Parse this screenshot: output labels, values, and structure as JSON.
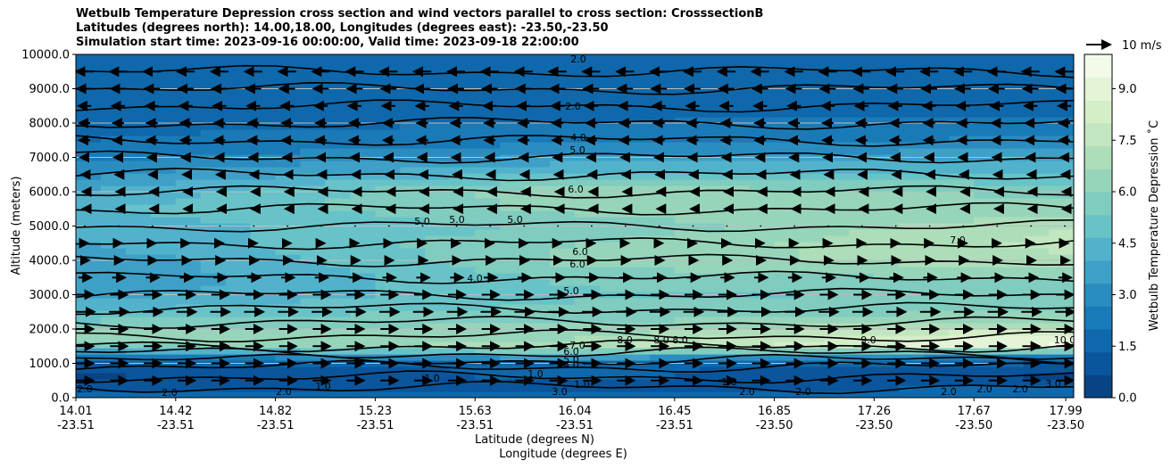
{
  "title_lines": [
    "Wetbulb Temperature Depression cross section and wind vectors parallel to cross section: CrosssectionB",
    "Latitudes (degrees north): 14.00,18.00, Longitudes (degrees east): -23.50,-23.50",
    "Simulation start time: 2023-09-16 00:00:00, Valid time: 2023-09-18 22:00:00"
  ],
  "chart_data": {
    "type": "heatmap",
    "ylabel": "Altitude (meters)",
    "xlabel_line1": "Latitude (degrees N)",
    "xlabel_line2": "Longitude (degrees E)",
    "ylim": [
      0,
      10000
    ],
    "y_ticks": [
      "0.0",
      "1000.0",
      "2000.0",
      "3000.0",
      "4000.0",
      "5000.0",
      "6000.0",
      "7000.0",
      "8000.0",
      "9000.0",
      "10000.0"
    ],
    "x_ticks": [
      {
        "lat": "14.01",
        "lon": "-23.51"
      },
      {
        "lat": "14.42",
        "lon": "-23.51"
      },
      {
        "lat": "14.82",
        "lon": "-23.51"
      },
      {
        "lat": "15.23",
        "lon": "-23.51"
      },
      {
        "lat": "15.63",
        "lon": "-23.51"
      },
      {
        "lat": "16.04",
        "lon": "-23.51"
      },
      {
        "lat": "16.45",
        "lon": "-23.51"
      },
      {
        "lat": "16.85",
        "lon": "-23.50"
      },
      {
        "lat": "17.26",
        "lon": "-23.50"
      },
      {
        "lat": "17.67",
        "lon": "-23.50"
      },
      {
        "lat": "17.99",
        "lon": "-23.50"
      }
    ],
    "colorbar": {
      "label": "Wetbulb Temperature Depression ˚C",
      "min": 0,
      "max": 10,
      "ticks": [
        "0.0",
        "1.5",
        "3.0",
        "4.5",
        "6.0",
        "7.5",
        "9.0"
      ],
      "colors": [
        "#084384",
        "#0a559c",
        "#0f68ab",
        "#1a7ab7",
        "#2b8cbf",
        "#3ea0c6",
        "#52b2cc",
        "#68c3c8",
        "#80ccbf",
        "#97d5bb",
        "#addeb9",
        "#c2e6bf",
        "#d4eec8",
        "#e4f4d6",
        "#f2fae9"
      ]
    },
    "profile": {
      "heights": [
        0,
        300,
        600,
        900,
        1100,
        1300,
        1500,
        1800,
        2200,
        2600,
        3000,
        3500,
        4000,
        4500,
        5000,
        5500,
        6000,
        6500,
        7000,
        7500,
        8000,
        8500,
        9000,
        9500,
        10000
      ],
      "left": [
        1.5,
        1.0,
        0.5,
        1.0,
        1.5,
        3.0,
        5.5,
        6.2,
        5.5,
        4.5,
        3.8,
        3.3,
        3.4,
        4.0,
        4.2,
        4.5,
        4.0,
        3.2,
        2.5,
        2.0,
        1.8,
        1.6,
        1.5,
        1.5,
        1.5
      ],
      "mid": [
        1.5,
        1.0,
        1.5,
        1.5,
        2.5,
        5.0,
        7.2,
        6.5,
        6.0,
        5.5,
        5.2,
        5.5,
        6.2,
        6.0,
        5.5,
        6.2,
        6.5,
        5.0,
        3.5,
        2.5,
        2.0,
        1.8,
        1.5,
        1.5,
        1.5
      ],
      "right": [
        1.5,
        1.5,
        0.5,
        1.0,
        1.5,
        3.5,
        9.5,
        9.3,
        6.5,
        6.0,
        5.5,
        6.2,
        7.2,
        7.6,
        7.3,
        6.2,
        5.8,
        4.8,
        3.8,
        2.8,
        2.2,
        1.8,
        1.5,
        1.5,
        1.5
      ]
    },
    "contour_labels": [
      "2.0",
      "2.0",
      "4.0",
      "5.0",
      "6.0",
      "5.0",
      "5.0",
      "5.0",
      "6.0",
      "6.0",
      "4.0",
      "5.0",
      "7.0",
      "7.0",
      "8.0",
      "8.0",
      "8.0",
      "9.0",
      "10.0",
      "6.0",
      "5.0",
      "4.0",
      "3.0",
      "1.0",
      "1.0",
      "1.0",
      "1.0",
      "2.0",
      "2.0",
      "2.0",
      "2.0",
      "2.0",
      "2.0",
      "2.0",
      "2.0",
      "3.0",
      "1.0"
    ],
    "wind_reference_label": "10 m/s",
    "wind_profile": {
      "heights": [
        500,
        1000,
        1500,
        2000,
        2500,
        3000,
        3500,
        4000,
        4500,
        5000,
        5500,
        6000,
        6500,
        7000,
        7500,
        8000,
        8500,
        9000,
        9500
      ],
      "u": [
        8,
        8,
        8,
        8,
        9,
        8,
        6,
        4,
        3,
        0,
        -2,
        -2,
        -3,
        -4,
        -5,
        -5,
        -6,
        -7,
        -8
      ]
    }
  }
}
